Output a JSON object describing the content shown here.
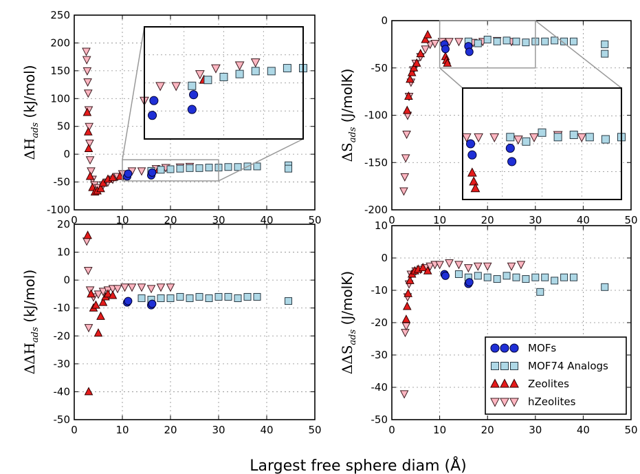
{
  "figure": {
    "xlabel": "Largest free sphere diam (Å)"
  },
  "series_styles": {
    "MOFs": {
      "shape": "circle",
      "fill": "#1f2fd6",
      "stroke": "#000033"
    },
    "MOF74 Analogs": {
      "shape": "square",
      "fill": "#aed8e6",
      "stroke": "#2a3a44"
    },
    "Zeolites": {
      "shape": "triangle-up",
      "fill": "#e51b1b",
      "stroke": "#300000"
    },
    "hZeolites": {
      "shape": "triangle-down",
      "fill": "#ffb6c1",
      "stroke": "#3a1a1f"
    }
  },
  "legend": {
    "position": "lower-right of bottom-right panel",
    "entries": [
      "MOFs",
      "MOF74 Analogs",
      "Zeolites",
      "hZeolites"
    ]
  },
  "chart_data": [
    {
      "type": "scatter",
      "panel": "top-left",
      "ylabel": "ΔH_ads (kJ/mol)",
      "ylabel_main": "ΔH",
      "ylabel_sub": "ads",
      "ylabel_unit": " (kJ/mol)",
      "xlim": [
        0,
        50
      ],
      "ylim": [
        -100,
        250
      ],
      "xticks": [
        0,
        10,
        20,
        30,
        40,
        50
      ],
      "yticks": [
        -100,
        -50,
        0,
        50,
        100,
        150,
        200,
        250
      ],
      "grid": true,
      "inset": "zoom of x 10–30, y -48 to -10",
      "series": [
        {
          "name": "hZeolites",
          "points": [
            [
              2.5,
              185
            ],
            [
              2.6,
              170
            ],
            [
              2.7,
              150
            ],
            [
              2.8,
              130
            ],
            [
              2.9,
              110
            ],
            [
              3.0,
              80
            ],
            [
              3.1,
              50
            ],
            [
              3.2,
              20
            ],
            [
              3.3,
              -10
            ],
            [
              3.5,
              -30
            ],
            [
              3.8,
              -45
            ],
            [
              4.2,
              -55
            ],
            [
              5.0,
              -60
            ],
            [
              6.0,
              -55
            ],
            [
              7.0,
              -50
            ],
            [
              8.0,
              -45
            ],
            [
              9.0,
              -40
            ],
            [
              10.0,
              -35
            ],
            [
              12,
              -30
            ],
            [
              14,
              -30
            ],
            [
              17,
              -26
            ],
            [
              19,
              -24
            ],
            [
              22,
              -23
            ],
            [
              24,
              -22
            ]
          ]
        },
        {
          "name": "Zeolites",
          "points": [
            [
              2.7,
              75
            ],
            [
              2.9,
              40
            ],
            [
              3.0,
              10
            ],
            [
              3.3,
              -40
            ],
            [
              3.8,
              -60
            ],
            [
              4.3,
              -68
            ],
            [
              4.8,
              -66
            ],
            [
              5.5,
              -62
            ],
            [
              6.0,
              -52
            ],
            [
              7.0,
              -45
            ],
            [
              8.0,
              -42
            ],
            [
              9.5,
              -40
            ],
            [
              17.5,
              -28
            ]
          ]
        },
        {
          "name": "MOFs",
          "points": [
            [
              11,
              -40
            ],
            [
              11.2,
              -35
            ],
            [
              16,
              -38
            ],
            [
              16.2,
              -33
            ]
          ]
        },
        {
          "name": "MOF74 Analogs",
          "points": [
            [
              16,
              -30
            ],
            [
              18,
              -28
            ],
            [
              20,
              -27
            ],
            [
              22,
              -26
            ],
            [
              24,
              -25
            ],
            [
              26,
              -25
            ],
            [
              28,
              -24
            ],
            [
              30,
              -24
            ],
            [
              32,
              -23
            ],
            [
              34,
              -23
            ],
            [
              36,
              -22
            ],
            [
              38,
              -22
            ],
            [
              44.5,
              -20
            ],
            [
              44.5,
              -26
            ]
          ]
        }
      ]
    },
    {
      "type": "scatter",
      "panel": "top-right",
      "ylabel": "ΔS_ads (J/molK)",
      "ylabel_main": "ΔS",
      "ylabel_sub": "ads",
      "ylabel_unit": " (J/molK)",
      "xlim": [
        0,
        50
      ],
      "ylim": [
        -200,
        0
      ],
      "xticks": [
        0,
        10,
        20,
        30,
        40,
        50
      ],
      "yticks": [
        -200,
        -150,
        -100,
        -50,
        0
      ],
      "grid": true,
      "inset": "zoom of x 10–30, y -50 to 0",
      "series": [
        {
          "name": "hZeolites",
          "points": [
            [
              2.5,
              -180
            ],
            [
              2.7,
              -165
            ],
            [
              2.9,
              -145
            ],
            [
              3.1,
              -120
            ],
            [
              3.3,
              -100
            ],
            [
              3.6,
              -80
            ],
            [
              4.0,
              -65
            ],
            [
              4.5,
              -52
            ],
            [
              5.0,
              -45
            ],
            [
              6.0,
              -38
            ],
            [
              7.0,
              -30
            ],
            [
              8.0,
              -25
            ],
            [
              9.0,
              -24
            ],
            [
              10.5,
              -22
            ],
            [
              12,
              -22
            ],
            [
              14,
              -22
            ],
            [
              17,
              -23
            ],
            [
              19,
              -22
            ],
            [
              22,
              -21
            ],
            [
              25,
              -22
            ]
          ]
        },
        {
          "name": "Zeolites",
          "points": [
            [
              3.2,
              -95
            ],
            [
              3.5,
              -80
            ],
            [
              3.8,
              -62
            ],
            [
              4.2,
              -55
            ],
            [
              4.6,
              -50
            ],
            [
              5.2,
              -45
            ],
            [
              6.0,
              -35
            ],
            [
              7.0,
              -20
            ],
            [
              7.5,
              -15
            ],
            [
              11.2,
              -38
            ],
            [
              11.4,
              -42
            ],
            [
              11.6,
              -45
            ]
          ]
        },
        {
          "name": "MOFs",
          "points": [
            [
              11,
              -25
            ],
            [
              11.2,
              -30
            ],
            [
              16,
              -27
            ],
            [
              16.2,
              -33
            ]
          ]
        },
        {
          "name": "MOF74 Analogs",
          "points": [
            [
              16,
              -22
            ],
            [
              18,
              -24
            ],
            [
              20,
              -20
            ],
            [
              22,
              -22
            ],
            [
              24,
              -21
            ],
            [
              26,
              -22
            ],
            [
              28,
              -23
            ],
            [
              30,
              -22
            ],
            [
              32,
              -22
            ],
            [
              34,
              -21
            ],
            [
              36,
              -22
            ],
            [
              38,
              -22
            ],
            [
              44.5,
              -25
            ],
            [
              44.5,
              -35
            ]
          ]
        }
      ]
    },
    {
      "type": "scatter",
      "panel": "bottom-left",
      "ylabel": "ΔΔH_ads (kJ/mol)",
      "ylabel_main": "ΔΔH",
      "ylabel_sub": "ads",
      "ylabel_unit": " (kJ/mol)",
      "xlim": [
        0,
        50
      ],
      "ylim": [
        -50,
        20
      ],
      "xticks": [
        0,
        10,
        20,
        30,
        40,
        50
      ],
      "yticks": [
        -50,
        -40,
        -30,
        -20,
        -10,
        0,
        10,
        20
      ],
      "grid": true,
      "series": [
        {
          "name": "hZeolites",
          "points": [
            [
              2.6,
              14
            ],
            [
              2.9,
              3.5
            ],
            [
              3.0,
              -17
            ],
            [
              3.3,
              -3.5
            ],
            [
              4.0,
              -6
            ],
            [
              5.0,
              -5
            ],
            [
              6.0,
              -4
            ],
            [
              7.0,
              -3.5
            ],
            [
              8.0,
              -3
            ],
            [
              9.0,
              -3
            ],
            [
              10.5,
              -2.5
            ],
            [
              12,
              -2.5
            ],
            [
              14,
              -2.5
            ],
            [
              16,
              -3
            ],
            [
              18,
              -2.5
            ],
            [
              20,
              -2.5
            ]
          ]
        },
        {
          "name": "Zeolites",
          "points": [
            [
              2.8,
              16
            ],
            [
              3.0,
              -40
            ],
            [
              3.5,
              -5
            ],
            [
              4.0,
              -10
            ],
            [
              4.5,
              -9
            ],
            [
              5.0,
              -19
            ],
            [
              5.5,
              -13
            ],
            [
              6.0,
              -8
            ],
            [
              6.5,
              -6
            ],
            [
              7.0,
              -5
            ],
            [
              8.0,
              -5.5
            ]
          ]
        },
        {
          "name": "MOFs",
          "points": [
            [
              11,
              -8
            ],
            [
              11.2,
              -7.5
            ],
            [
              16,
              -9
            ],
            [
              16.2,
              -8.5
            ]
          ]
        },
        {
          "name": "MOF74 Analogs",
          "points": [
            [
              14,
              -6.5
            ],
            [
              16,
              -7
            ],
            [
              18,
              -6.5
            ],
            [
              20,
              -6.5
            ],
            [
              22,
              -6
            ],
            [
              24,
              -6.5
            ],
            [
              26,
              -6
            ],
            [
              28,
              -6.5
            ],
            [
              30,
              -6
            ],
            [
              32,
              -6
            ],
            [
              34,
              -6.5
            ],
            [
              36,
              -6
            ],
            [
              38,
              -6
            ],
            [
              44.5,
              -7.5
            ]
          ]
        }
      ]
    },
    {
      "type": "scatter",
      "panel": "bottom-right",
      "ylabel": "ΔΔS_ads (J/molK)",
      "ylabel_main": "ΔΔS",
      "ylabel_sub": "ads",
      "ylabel_unit": " (J/molK)",
      "xlim": [
        0,
        50
      ],
      "ylim": [
        -50,
        10
      ],
      "xticks": [
        0,
        10,
        20,
        30,
        40,
        50
      ],
      "yticks": [
        -50,
        -40,
        -30,
        -20,
        -10,
        0,
        10
      ],
      "grid": true,
      "series": [
        {
          "name": "hZeolites",
          "points": [
            [
              2.6,
              -42
            ],
            [
              2.8,
              -23
            ],
            [
              3.0,
              -21
            ],
            [
              3.3,
              -12
            ],
            [
              3.6,
              -8
            ],
            [
              4.0,
              -5
            ],
            [
              5.0,
              -4
            ],
            [
              6.0,
              -3.5
            ],
            [
              7.0,
              -3
            ],
            [
              8.0,
              -2.5
            ],
            [
              9.0,
              -2
            ],
            [
              10,
              -2
            ],
            [
              12,
              -1.5
            ],
            [
              14,
              -2
            ],
            [
              16,
              -3
            ],
            [
              18,
              -2.5
            ],
            [
              20,
              -2.5
            ],
            [
              25,
              -2.5
            ],
            [
              27,
              -2
            ]
          ]
        },
        {
          "name": "Zeolites",
          "points": [
            [
              3.0,
              -19
            ],
            [
              3.2,
              -15
            ],
            [
              3.4,
              -11
            ],
            [
              3.8,
              -7
            ],
            [
              4.2,
              -5
            ],
            [
              4.8,
              -4
            ],
            [
              5.5,
              -3.5
            ],
            [
              6.5,
              -3
            ],
            [
              7.5,
              -4
            ]
          ]
        },
        {
          "name": "MOFs",
          "points": [
            [
              11,
              -5
            ],
            [
              11.2,
              -5.5
            ],
            [
              16,
              -8
            ],
            [
              16.2,
              -7.5
            ]
          ]
        },
        {
          "name": "MOF74 Analogs",
          "points": [
            [
              14,
              -5
            ],
            [
              16,
              -6
            ],
            [
              18,
              -5.5
            ],
            [
              20,
              -6
            ],
            [
              22,
              -6.5
            ],
            [
              24,
              -5.5
            ],
            [
              26,
              -6
            ],
            [
              28,
              -6.5
            ],
            [
              30,
              -6
            ],
            [
              31,
              -10.5
            ],
            [
              32,
              -6
            ],
            [
              34,
              -7
            ],
            [
              36,
              -6
            ],
            [
              38,
              -6
            ],
            [
              44.5,
              -9
            ]
          ]
        }
      ]
    }
  ]
}
